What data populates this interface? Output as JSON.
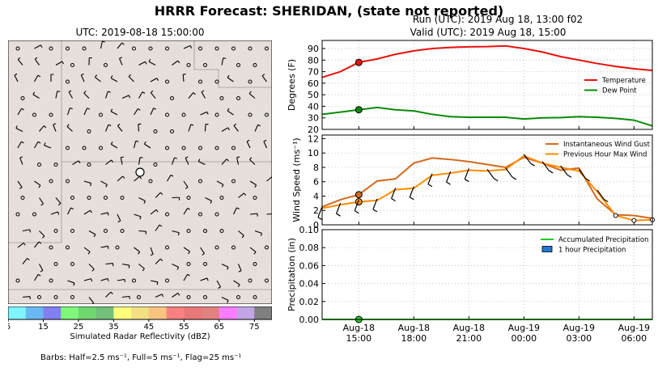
{
  "figure": {
    "title": "HRRR Forecast: SHERIDAN, (state not reported)",
    "run_label": "Run (UTC): 2019 Aug 18, 13:00 f02",
    "valid_label": "Valid (UTC): 2019 Aug 18, 15:00",
    "barbs_note": "Barbs: Half=2.5 ms⁻¹, Full=5 ms⁻¹, Flag=25 ms⁻¹"
  },
  "map": {
    "title": "UTC: 2019-08-18 15:00:00",
    "colorbar": {
      "label": "Simulated Radar Reflectivity (dBZ)",
      "ticks": [
        "5",
        "15",
        "25",
        "35",
        "45",
        "55",
        "65",
        "75"
      ],
      "colors": [
        "#7ff5ff",
        "#6bb9f4",
        "#8380f3",
        "#7ef77b",
        "#6ed86e",
        "#72c07a",
        "#fdfd7b",
        "#f2e082",
        "#f8c480",
        "#fb8080",
        "#e87779",
        "#e28180",
        "#fe7cfe",
        "#c2a5e6",
        "#7f7f7f"
      ]
    }
  },
  "chart_data": [
    {
      "type": "line",
      "title": "",
      "ylabel": "Degrees (F)",
      "ylim": [
        20,
        97
      ],
      "yticks": [
        "20",
        "30",
        "40",
        "50",
        "60",
        "70",
        "80",
        "90"
      ],
      "x": [
        "13:00",
        "14:00",
        "15:00",
        "16:00",
        "17:00",
        "18:00",
        "19:00",
        "20:00",
        "21:00",
        "22:00",
        "23:00",
        "00:00",
        "01:00",
        "02:00",
        "03:00",
        "04:00",
        "05:00",
        "06:00",
        "07:00"
      ],
      "series": [
        {
          "name": "Temperature",
          "color": "#e8120e",
          "values": [
            65,
            70,
            78,
            81,
            85,
            88,
            90,
            91,
            91.5,
            91.7,
            92.3,
            90,
            87,
            83,
            80,
            77,
            74.5,
            72.5,
            71
          ]
        },
        {
          "name": "Dew Point",
          "color": "#0a8a0a",
          "values": [
            33,
            35,
            37,
            39,
            37,
            36,
            33,
            31,
            30.5,
            30.5,
            30.5,
            29,
            30,
            30.2,
            31,
            30.5,
            29.5,
            28,
            23
          ]
        }
      ],
      "marker_index": 2,
      "grid": true,
      "legend": "right"
    },
    {
      "type": "line",
      "title": "",
      "ylabel": "Wind Speed (ms⁻¹)",
      "ylim": [
        0,
        12.5
      ],
      "yticks": [
        "0",
        "2",
        "4",
        "6",
        "8",
        "10",
        "12"
      ],
      "x": [
        "13:00",
        "14:00",
        "15:00",
        "16:00",
        "17:00",
        "18:00",
        "19:00",
        "20:00",
        "21:00",
        "22:00",
        "23:00",
        "00:00",
        "01:00",
        "02:00",
        "03:00",
        "04:00",
        "05:00",
        "06:00",
        "07:00"
      ],
      "series": [
        {
          "name": "Instantaneous Wind Gust",
          "color": "#d2691e",
          "values": [
            2.5,
            3.5,
            4.2,
            6.1,
            6.4,
            8.6,
            9.3,
            9.1,
            8.8,
            8.4,
            8.0,
            9.4,
            8.6,
            7.6,
            7.9,
            3.6,
            1.4,
            1.3,
            0.9
          ]
        },
        {
          "name": "Previous Hour Max Wind",
          "color": "#ff8c00",
          "values": [
            2.3,
            2.8,
            3.2,
            3.4,
            4.9,
            5.1,
            6.9,
            7.2,
            7.6,
            7.5,
            7.7,
            9.6,
            8.6,
            8.0,
            7.5,
            4.6,
            1.3,
            0.6,
            0.7
          ]
        }
      ],
      "marker_index": 2,
      "grid": true,
      "legend": "top-right"
    },
    {
      "type": "line",
      "title": "",
      "ylabel": "Precipitation (in)",
      "ylim": [
        0,
        0.1
      ],
      "yticks": [
        "0.00",
        "0.02",
        "0.04",
        "0.06",
        "0.08",
        "0.10"
      ],
      "x": [
        "13:00",
        "14:00",
        "15:00",
        "16:00",
        "17:00",
        "18:00",
        "19:00",
        "20:00",
        "21:00",
        "22:00",
        "23:00",
        "00:00",
        "01:00",
        "02:00",
        "03:00",
        "04:00",
        "05:00",
        "06:00",
        "07:00"
      ],
      "series": [
        {
          "name": "Accumulated Precipitation",
          "color": "#22cc22",
          "values": [
            0,
            0,
            0,
            0,
            0,
            0,
            0,
            0,
            0,
            0,
            0,
            0,
            0,
            0,
            0,
            0,
            0,
            0,
            0
          ]
        },
        {
          "name": "1 hour Precipitation",
          "color": "#1f77d4",
          "values": [
            0,
            0,
            0,
            0,
            0,
            0,
            0,
            0,
            0,
            0,
            0,
            0,
            0,
            0,
            0,
            0,
            0,
            0,
            0
          ]
        }
      ],
      "marker_index": 2,
      "grid": true,
      "legend": "top-right",
      "xticks": [
        {
          "index": 2,
          "line1": "Aug-18",
          "line2": "15:00"
        },
        {
          "index": 5,
          "line1": "Aug-18",
          "line2": "18:00"
        },
        {
          "index": 8,
          "line1": "Aug-18",
          "line2": "21:00"
        },
        {
          "index": 11,
          "line1": "Aug-19",
          "line2": "00:00"
        },
        {
          "index": 14,
          "line1": "Aug-19",
          "line2": "03:00"
        },
        {
          "index": 17,
          "line1": "Aug-19",
          "line2": "06:00"
        }
      ]
    }
  ]
}
